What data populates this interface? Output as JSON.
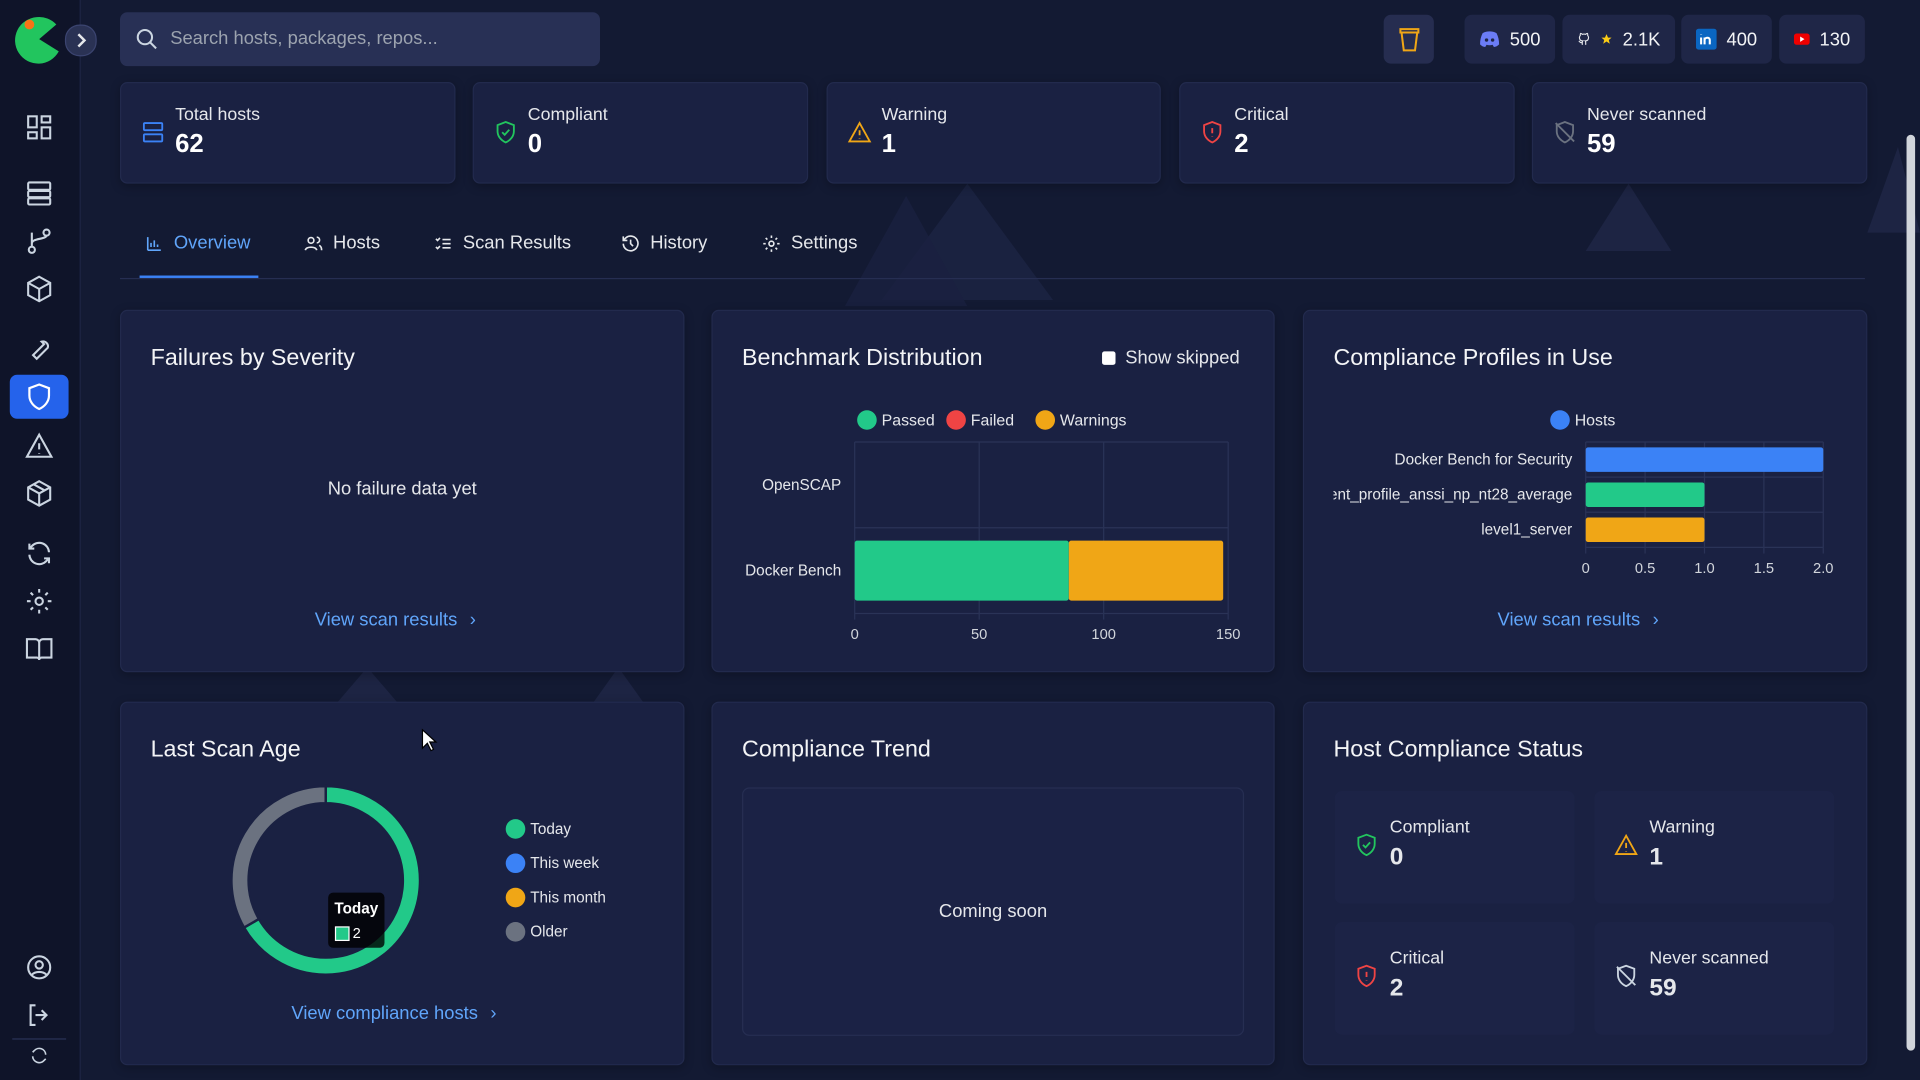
{
  "search": {
    "placeholder": "Search hosts, packages, repos..."
  },
  "social": [
    "500",
    "2.1K",
    "400",
    "130"
  ],
  "stats": [
    {
      "label": "Total hosts",
      "value": 62
    },
    {
      "label": "Compliant",
      "value": 0
    },
    {
      "label": "Warning",
      "value": 1
    },
    {
      "label": "Critical",
      "value": 2
    },
    {
      "label": "Never scanned",
      "value": 59
    }
  ],
  "tabs": [
    "Overview",
    "Hosts",
    "Scan Results",
    "History",
    "Settings"
  ],
  "panels": {
    "failures": {
      "title": "Failures by Severity",
      "empty_text": "No failure data yet",
      "link": "View scan results"
    },
    "benchmark": {
      "toggle": "Show skipped"
    },
    "profiles": {
      "link": "View scan results"
    },
    "last_scan": {
      "link": "View compliance hosts"
    },
    "trend": {
      "title": "Compliance Trend",
      "empty_text": "Coming soon"
    },
    "host_status": {
      "title": "Host Compliance Status",
      "items": [
        {
          "label": "Compliant",
          "value": 0
        },
        {
          "label": "Warning",
          "value": 1
        },
        {
          "label": "Critical",
          "value": 2
        },
        {
          "label": "Never scanned",
          "value": 59
        }
      ]
    }
  },
  "chart_data": [
    {
      "type": "bar",
      "orientation": "horizontal",
      "stacked": true,
      "title": "Benchmark Distribution",
      "categories": [
        "OpenSCAP",
        "Docker Bench"
      ],
      "series": [
        {
          "name": "Passed",
          "color": "#22c989",
          "values": [
            0,
            86
          ]
        },
        {
          "name": "Failed",
          "color": "#ef4444",
          "values": [
            0,
            0
          ]
        },
        {
          "name": "Warnings",
          "color": "#f0a616",
          "values": [
            0,
            62
          ]
        }
      ],
      "xlim": [
        0,
        150
      ],
      "xticks": [
        0,
        50,
        100,
        150
      ],
      "grid": true
    },
    {
      "type": "bar",
      "orientation": "horizontal",
      "title": "Compliance Profiles in Use",
      "categories": [
        "Docker Bench for Security",
        "ent_profile_anssi_np_nt28_average",
        "level1_server"
      ],
      "series": [
        {
          "name": "Hosts",
          "color": "#3b82f6",
          "values": [
            2,
            1,
            1
          ]
        }
      ],
      "colors": [
        "#3b82f6",
        "#22c989",
        "#f0a616"
      ],
      "xlim": [
        0,
        2
      ],
      "xticks": [
        0,
        0.5,
        {
          "value": 1,
          "label": "1.0"
        },
        1.5,
        {
          "value": 2,
          "label": "2.0"
        }
      ],
      "grid": true
    },
    {
      "type": "donut",
      "title": "Last Scan Age",
      "categories": [
        "Today",
        "This week",
        "This month",
        "Older"
      ],
      "values": [
        2,
        0,
        0,
        1
      ],
      "colors": [
        "#22c989",
        "#3b82f6",
        "#f0a616",
        "#6b7280"
      ]
    }
  ]
}
